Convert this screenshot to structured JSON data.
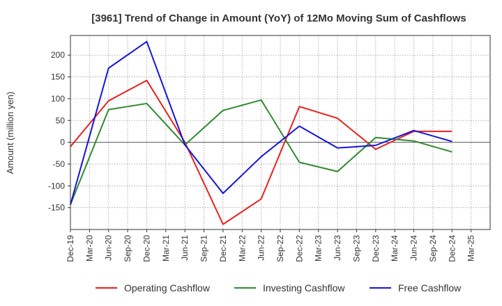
{
  "chart_data": {
    "type": "line",
    "title": "[3961]  Trend of Change in Amount (YoY) of 12Mo Moving Sum of Cashflows",
    "xlabel": "",
    "ylabel": "Amount (million yen)",
    "ylim": [
      -200,
      245
    ],
    "yticks": [
      -150,
      -100,
      -50,
      0,
      50,
      100,
      150,
      200
    ],
    "categories": [
      "Dec-19",
      "Mar-20",
      "Jun-20",
      "Sep-20",
      "Dec-20",
      "Mar-21",
      "Jun-21",
      "Sep-21",
      "Dec-21",
      "Mar-22",
      "Jun-22",
      "Sep-22",
      "Dec-22",
      "Mar-23",
      "Jun-23",
      "Sep-23",
      "Dec-23",
      "Mar-24",
      "Jun-24",
      "Sep-24",
      "Dec-24",
      "Mar-25"
    ],
    "grid": true,
    "legend_position": "bottom",
    "series": [
      {
        "name": "Operating Cashflow",
        "color": "#e8201c",
        "values": [
          -10,
          null,
          95,
          null,
          142,
          null,
          0,
          null,
          -188,
          null,
          -130,
          null,
          82,
          null,
          55,
          null,
          -16,
          null,
          25,
          null,
          25,
          null
        ]
      },
      {
        "name": "Investing Cashflow",
        "color": "#2e8b2e",
        "values": [
          -143,
          null,
          75,
          null,
          89,
          null,
          -6,
          null,
          73,
          null,
          97,
          null,
          -46,
          null,
          -67,
          null,
          11,
          null,
          3,
          null,
          -22,
          null
        ]
      },
      {
        "name": "Free Cashflow",
        "color": "#1414dc",
        "values": [
          -143,
          null,
          170,
          null,
          231,
          null,
          -6,
          null,
          -117,
          null,
          -33,
          null,
          37,
          null,
          -13,
          null,
          -7,
          null,
          27,
          null,
          2,
          null
        ]
      }
    ]
  }
}
